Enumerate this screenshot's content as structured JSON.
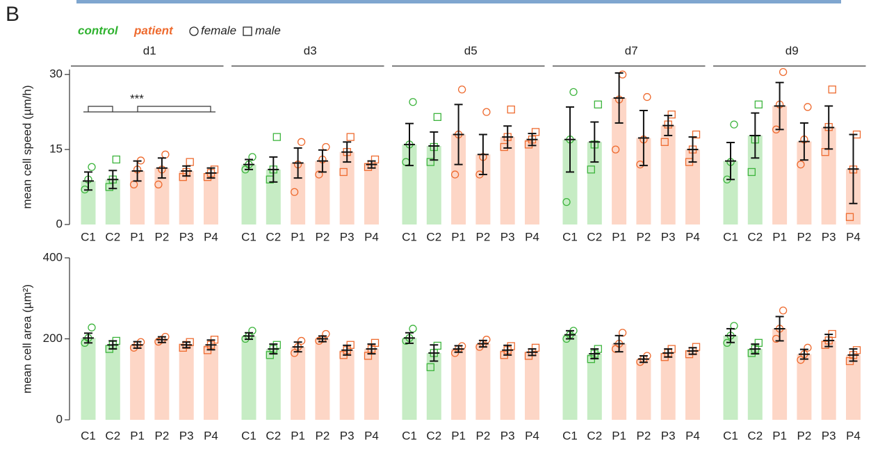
{
  "panel_label": "B",
  "legend": {
    "control": "control",
    "patient": "patient",
    "female": "female",
    "male": "male"
  },
  "annotation": "***",
  "chart_data": [
    {
      "type": "bar",
      "title": "d1",
      "ylabel": "mean cell speed (µm/h)",
      "categories": [
        "C1",
        "C2",
        "P1",
        "P2",
        "P3",
        "P4"
      ],
      "values": [
        8.7,
        9,
        10.7,
        11.3,
        10.7,
        10.3
      ],
      "errors": [
        1.8,
        1.8,
        2,
        2,
        1,
        1
      ],
      "points": [
        [
          7,
          9,
          11.5
        ],
        [
          7.5,
          9,
          13
        ],
        [
          8,
          11,
          12.8
        ],
        [
          8,
          11,
          14
        ],
        [
          9.5,
          10.5,
          12.5
        ],
        [
          9.5,
          10.3,
          11
        ]
      ],
      "markers": [
        "circle",
        "square",
        "circle",
        "circle",
        "square",
        "square"
      ],
      "bar_colors": [
        "#c6ecc4",
        "#c6ecc4",
        "#fdd6c6",
        "#fdd6c6",
        "#fdd6c6",
        "#fdd6c6"
      ],
      "point_colors": [
        "#3cb43c",
        "#3cb43c",
        "#ee6a2e",
        "#ee6a2e",
        "#ee6a2e",
        "#ee6a2e"
      ],
      "ylim": [
        0,
        31
      ],
      "yticks": [
        0,
        15,
        30
      ]
    },
    {
      "type": "bar",
      "title": "d3",
      "categories": [
        "C1",
        "C2",
        "P1",
        "P2",
        "P3",
        "P4"
      ],
      "values": [
        12,
        11,
        12.3,
        12.7,
        14.5,
        12
      ],
      "errors": [
        1,
        2.5,
        3,
        2.2,
        2,
        0.7
      ],
      "points": [
        [
          11,
          12,
          13.5
        ],
        [
          9,
          11,
          17.5
        ],
        [
          6.5,
          12,
          16.5
        ],
        [
          10,
          13,
          15.5
        ],
        [
          10.5,
          14.5,
          17.5
        ],
        [
          11.5,
          12,
          13
        ]
      ],
      "markers": [
        "circle",
        "square",
        "circle",
        "circle",
        "square",
        "square"
      ],
      "bar_colors": [
        "#c6ecc4",
        "#c6ecc4",
        "#fdd6c6",
        "#fdd6c6",
        "#fdd6c6",
        "#fdd6c6"
      ],
      "point_colors": [
        "#3cb43c",
        "#3cb43c",
        "#ee6a2e",
        "#ee6a2e",
        "#ee6a2e",
        "#ee6a2e"
      ],
      "ylim": [
        0,
        31
      ]
    },
    {
      "type": "bar",
      "title": "d5",
      "categories": [
        "C1",
        "C2",
        "P1",
        "P2",
        "P3",
        "P4"
      ],
      "values": [
        16,
        15.7,
        18,
        14,
        17.5,
        17
      ],
      "errors": [
        4.2,
        2.8,
        6,
        4,
        2.2,
        1.2
      ],
      "points": [
        [
          12.5,
          16,
          24.5
        ],
        [
          12.5,
          15.5,
          21.5
        ],
        [
          10,
          18,
          27
        ],
        [
          10,
          13.5,
          22.5
        ],
        [
          15.5,
          17.5,
          23
        ],
        [
          16,
          17,
          18.5
        ]
      ],
      "markers": [
        "circle",
        "square",
        "circle",
        "circle",
        "square",
        "square"
      ],
      "bar_colors": [
        "#c6ecc4",
        "#c6ecc4",
        "#fdd6c6",
        "#fdd6c6",
        "#fdd6c6",
        "#fdd6c6"
      ],
      "point_colors": [
        "#3cb43c",
        "#3cb43c",
        "#ee6a2e",
        "#ee6a2e",
        "#ee6a2e",
        "#ee6a2e"
      ],
      "ylim": [
        0,
        31
      ]
    },
    {
      "type": "bar",
      "title": "d7",
      "categories": [
        "C1",
        "C2",
        "P1",
        "P2",
        "P3",
        "P4"
      ],
      "values": [
        17,
        16.5,
        25.3,
        17.3,
        19.8,
        15
      ],
      "errors": [
        6.5,
        4,
        5,
        5.5,
        2,
        2.5
      ],
      "points": [
        [
          4.5,
          17,
          26.5
        ],
        [
          11,
          16,
          24
        ],
        [
          15,
          25,
          30
        ],
        [
          12,
          17,
          25.5
        ],
        [
          16.5,
          20,
          22
        ],
        [
          12.5,
          15,
          18
        ]
      ],
      "markers": [
        "circle",
        "square",
        "circle",
        "circle",
        "square",
        "square"
      ],
      "bar_colors": [
        "#c6ecc4",
        "#c6ecc4",
        "#fdd6c6",
        "#fdd6c6",
        "#fdd6c6",
        "#fdd6c6"
      ],
      "point_colors": [
        "#3cb43c",
        "#3cb43c",
        "#ee6a2e",
        "#ee6a2e",
        "#ee6a2e",
        "#ee6a2e"
      ],
      "ylim": [
        0,
        31
      ]
    },
    {
      "type": "bar",
      "title": "d9",
      "categories": [
        "C1",
        "C2",
        "P1",
        "P2",
        "P3",
        "P4"
      ],
      "values": [
        12.7,
        17.8,
        23.7,
        16.6,
        19.4,
        11.1
      ],
      "errors": [
        3.7,
        4.5,
        4.7,
        3.7,
        4.3,
        6.9
      ],
      "points": [
        [
          9,
          12.5,
          20
        ],
        [
          10.5,
          17,
          24
        ],
        [
          19,
          24,
          30.5
        ],
        [
          12,
          17,
          23.5
        ],
        [
          14.5,
          19.5,
          27
        ],
        [
          1.5,
          11,
          18
        ]
      ],
      "markers": [
        "circle",
        "square",
        "circle",
        "circle",
        "square",
        "square"
      ],
      "bar_colors": [
        "#c6ecc4",
        "#c6ecc4",
        "#fdd6c6",
        "#fdd6c6",
        "#fdd6c6",
        "#fdd6c6"
      ],
      "point_colors": [
        "#3cb43c",
        "#3cb43c",
        "#ee6a2e",
        "#ee6a2e",
        "#ee6a2e",
        "#ee6a2e"
      ],
      "ylim": [
        0,
        31
      ]
    },
    {
      "type": "bar",
      "ylabel": "mean cell area (µm²)",
      "categories": [
        "C1",
        "C2",
        "P1",
        "P2",
        "P3",
        "P4"
      ],
      "values": [
        202,
        185,
        185,
        198,
        185,
        185
      ],
      "errors": [
        12,
        10,
        8,
        7,
        7,
        12
      ],
      "points": [
        [
          190,
          202,
          228
        ],
        [
          175,
          185,
          195
        ],
        [
          178,
          185,
          192
        ],
        [
          193,
          198,
          205
        ],
        [
          178,
          185,
          192
        ],
        [
          172,
          185,
          198
        ]
      ],
      "markers": [
        "circle",
        "square",
        "circle",
        "circle",
        "square",
        "square"
      ],
      "bar_colors": [
        "#c6ecc4",
        "#c6ecc4",
        "#fdd6c6",
        "#fdd6c6",
        "#fdd6c6",
        "#fdd6c6"
      ],
      "point_colors": [
        "#3cb43c",
        "#3cb43c",
        "#ee6a2e",
        "#ee6a2e",
        "#ee6a2e",
        "#ee6a2e"
      ],
      "ylim": [
        0,
        400
      ],
      "yticks": [
        0,
        200,
        400
      ]
    },
    {
      "type": "bar",
      "categories": [
        "C1",
        "C2",
        "P1",
        "P2",
        "P3",
        "P4"
      ],
      "values": [
        207,
        175,
        180,
        200,
        172,
        175
      ],
      "errors": [
        8,
        12,
        12,
        7,
        12,
        12
      ],
      "points": [
        [
          200,
          207,
          220
        ],
        [
          160,
          175,
          185
        ],
        [
          165,
          180,
          195
        ],
        [
          195,
          200,
          212
        ],
        [
          160,
          172,
          185
        ],
        [
          158,
          175,
          190
        ]
      ],
      "markers": [
        "circle",
        "square",
        "circle",
        "circle",
        "square",
        "square"
      ],
      "bar_colors": [
        "#c6ecc4",
        "#c6ecc4",
        "#fdd6c6",
        "#fdd6c6",
        "#fdd6c6",
        "#fdd6c6"
      ],
      "point_colors": [
        "#3cb43c",
        "#3cb43c",
        "#ee6a2e",
        "#ee6a2e",
        "#ee6a2e",
        "#ee6a2e"
      ],
      "ylim": [
        0,
        400
      ]
    },
    {
      "type": "bar",
      "categories": [
        "C1",
        "C2",
        "P1",
        "P2",
        "P3",
        "P4"
      ],
      "values": [
        202,
        165,
        175,
        188,
        172,
        167
      ],
      "errors": [
        13,
        20,
        8,
        8,
        12,
        8
      ],
      "points": [
        [
          195,
          202,
          225
        ],
        [
          130,
          165,
          183
        ],
        [
          165,
          175,
          182
        ],
        [
          180,
          188,
          198
        ],
        [
          160,
          172,
          182
        ],
        [
          158,
          167,
          178
        ]
      ],
      "markers": [
        "circle",
        "square",
        "circle",
        "circle",
        "square",
        "square"
      ],
      "bar_colors": [
        "#c6ecc4",
        "#c6ecc4",
        "#fdd6c6",
        "#fdd6c6",
        "#fdd6c6",
        "#fdd6c6"
      ],
      "point_colors": [
        "#3cb43c",
        "#3cb43c",
        "#ee6a2e",
        "#ee6a2e",
        "#ee6a2e",
        "#ee6a2e"
      ],
      "ylim": [
        0,
        400
      ]
    },
    {
      "type": "bar",
      "categories": [
        "C1",
        "C2",
        "P1",
        "P2",
        "P3",
        "P4"
      ],
      "values": [
        210,
        163,
        188,
        150,
        165,
        170
      ],
      "errors": [
        10,
        12,
        20,
        8,
        10,
        8
      ],
      "points": [
        [
          200,
          210,
          220
        ],
        [
          150,
          163,
          175
        ],
        [
          175,
          188,
          215
        ],
        [
          143,
          150,
          158
        ],
        [
          155,
          165,
          175
        ],
        [
          162,
          170,
          180
        ]
      ],
      "markers": [
        "circle",
        "square",
        "circle",
        "circle",
        "square",
        "square"
      ],
      "bar_colors": [
        "#c6ecc4",
        "#c6ecc4",
        "#fdd6c6",
        "#fdd6c6",
        "#fdd6c6",
        "#fdd6c6"
      ],
      "point_colors": [
        "#3cb43c",
        "#3cb43c",
        "#ee6a2e",
        "#ee6a2e",
        "#ee6a2e",
        "#ee6a2e"
      ],
      "ylim": [
        0,
        400
      ]
    },
    {
      "type": "bar",
      "categories": [
        "C1",
        "C2",
        "P1",
        "P2",
        "P3",
        "P4"
      ],
      "values": [
        208,
        175,
        225,
        162,
        196,
        160
      ],
      "errors": [
        17,
        12,
        30,
        12,
        15,
        15
      ],
      "points": [
        [
          190,
          208,
          232
        ],
        [
          165,
          175,
          190
        ],
        [
          200,
          225,
          270
        ],
        [
          148,
          162,
          178
        ],
        [
          185,
          196,
          212
        ],
        [
          145,
          160,
          172
        ]
      ],
      "markers": [
        "circle",
        "square",
        "circle",
        "circle",
        "square",
        "square"
      ],
      "bar_colors": [
        "#c6ecc4",
        "#c6ecc4",
        "#fdd6c6",
        "#fdd6c6",
        "#fdd6c6",
        "#fdd6c6"
      ],
      "point_colors": [
        "#3cb43c",
        "#3cb43c",
        "#ee6a2e",
        "#ee6a2e",
        "#ee6a2e",
        "#ee6a2e"
      ],
      "ylim": [
        0,
        400
      ]
    }
  ]
}
